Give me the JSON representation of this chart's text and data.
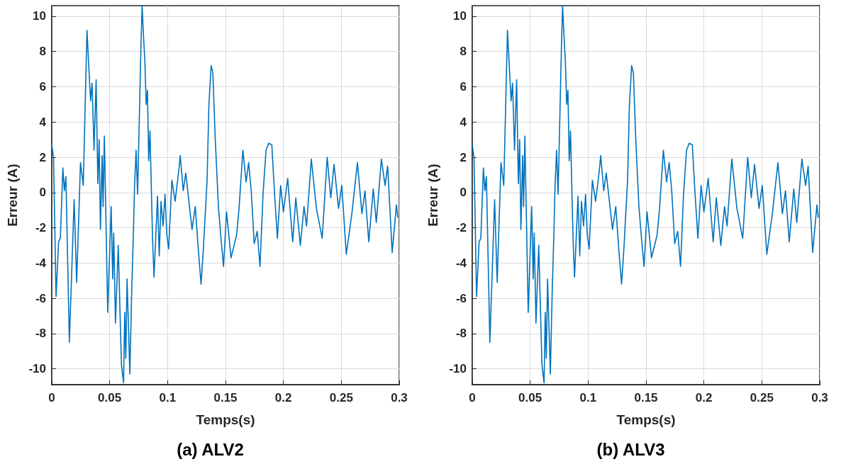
{
  "chart_data": [
    {
      "type": "line",
      "title": "(a) ALV2",
      "xlabel": "Temps(s)",
      "ylabel": "Erreur (A)",
      "xlim": [
        0,
        0.3
      ],
      "xticks": [
        0,
        0.05,
        0.1,
        0.15,
        0.2,
        0.25,
        0.3
      ],
      "ylim": [
        -10.9,
        10.6
      ],
      "yticks": [
        -10,
        -8,
        -6,
        -4,
        -2,
        0,
        2,
        4,
        6,
        8,
        10
      ],
      "grid": true,
      "marker": "none",
      "line_style": "solid",
      "series": [
        {
          "color": "#0072bd",
          "x": [
            0,
            0.0015,
            0.0037,
            0.0059,
            0.0074,
            0.0096,
            0.0109,
            0.0122,
            0.0152,
            0.0193,
            0.0215,
            0.0248,
            0.0272,
            0.0304,
            0.0335,
            0.0348,
            0.0365,
            0.0383,
            0.0398,
            0.0409,
            0.042,
            0.0435,
            0.0443,
            0.0454,
            0.0483,
            0.0513,
            0.0526,
            0.0535,
            0.055,
            0.0574,
            0.0593,
            0.0602,
            0.062,
            0.063,
            0.0639,
            0.065,
            0.0674,
            0.0691,
            0.0704,
            0.0715,
            0.0728,
            0.0741,
            0.0757,
            0.077,
            0.078,
            0.0791,
            0.0804,
            0.0815,
            0.0826,
            0.0837,
            0.0848,
            0.087,
            0.0883,
            0.0898,
            0.0913,
            0.0928,
            0.0943,
            0.0961,
            0.0978,
            0.0993,
            0.1009,
            0.1037,
            0.1065,
            0.1096,
            0.1109,
            0.1135,
            0.1157,
            0.1189,
            0.1211,
            0.1239,
            0.1265,
            0.1289,
            0.1309,
            0.1341,
            0.1357,
            0.1376,
            0.1391,
            0.1411,
            0.1439,
            0.1461,
            0.1483,
            0.1509,
            0.1548,
            0.1596,
            0.1617,
            0.165,
            0.1678,
            0.17,
            0.1722,
            0.1748,
            0.1774,
            0.1798,
            0.1824,
            0.185,
            0.1874,
            0.19,
            0.1922,
            0.1948,
            0.1976,
            0.2,
            0.2037,
            0.208,
            0.2107,
            0.2146,
            0.2178,
            0.22,
            0.2241,
            0.2285,
            0.2335,
            0.2378,
            0.2409,
            0.2437,
            0.2476,
            0.2504,
            0.2543,
            0.2591,
            0.2639,
            0.2678,
            0.2704,
            0.2737,
            0.2776,
            0.2802,
            0.2846,
            0.2878,
            0.29,
            0.2939,
            0.2976,
            0.2987
          ],
          "values": [
            2.7,
            2.0,
            -5.9,
            -2.8,
            -2.6,
            1.4,
            0.1,
            0.9,
            -8.5,
            -0.4,
            -5.1,
            1.7,
            0.4,
            9.2,
            5.2,
            6.2,
            2.4,
            6.4,
            0.5,
            3.0,
            -2.1,
            2.1,
            -0.8,
            3.2,
            -6.8,
            -0.8,
            -4.9,
            -2.3,
            -7.4,
            -3.0,
            -7.7,
            -9.8,
            -10.8,
            -6.8,
            -9.4,
            -4.9,
            -10.3,
            -5.4,
            -2.5,
            0.4,
            2.4,
            -0.1,
            4.5,
            8.3,
            10.6,
            9.0,
            7.4,
            5.0,
            5.8,
            1.8,
            3.5,
            -2.6,
            -4.8,
            -2.5,
            -0.2,
            -3.6,
            -0.5,
            -1.9,
            -0.1,
            -2.4,
            -3.2,
            0.7,
            -0.5,
            1.2,
            2.1,
            0.1,
            1.1,
            -0.8,
            -2.1,
            -0.8,
            -3.2,
            -5.2,
            -3.2,
            0.7,
            5.0,
            7.2,
            6.8,
            3.1,
            -0.8,
            -2.6,
            -4.2,
            -1.1,
            -3.7,
            -2.4,
            -0.9,
            2.4,
            0.6,
            1.7,
            0.1,
            -2.9,
            -2.2,
            -4.2,
            -0.1,
            2.4,
            2.8,
            2.7,
            0.1,
            -2.6,
            0.4,
            -1.1,
            0.8,
            -2.8,
            -0.3,
            -3.0,
            -0.8,
            -1.9,
            1.9,
            -0.9,
            -2.6,
            2.0,
            -0.3,
            1.6,
            -0.9,
            0.4,
            -3.5,
            -1.2,
            1.7,
            -1.2,
            0.1,
            -2.8,
            0.2,
            -1.7,
            1.9,
            0.4,
            1.5,
            -3.4,
            -0.7,
            -1.4
          ]
        }
      ]
    },
    {
      "type": "line",
      "title": "(b) ALV3",
      "xlabel": "Temps(s)",
      "ylabel": "Erreur (A)",
      "xlim": [
        0,
        0.3
      ],
      "xticks": [
        0,
        0.05,
        0.1,
        0.15,
        0.2,
        0.25,
        0.3
      ],
      "ylim": [
        -10.9,
        10.6
      ],
      "yticks": [
        -10,
        -8,
        -6,
        -4,
        -2,
        0,
        2,
        4,
        6,
        8,
        10
      ],
      "grid": true,
      "marker": "none",
      "line_style": "solid",
      "series": [
        {
          "color": "#0072bd",
          "x": [
            0,
            0.0015,
            0.0037,
            0.0059,
            0.0074,
            0.0096,
            0.0109,
            0.0122,
            0.0152,
            0.0193,
            0.0215,
            0.0248,
            0.0272,
            0.0304,
            0.0335,
            0.0348,
            0.0365,
            0.0383,
            0.0398,
            0.0409,
            0.042,
            0.0435,
            0.0443,
            0.0454,
            0.0483,
            0.0513,
            0.0526,
            0.0535,
            0.055,
            0.0574,
            0.0593,
            0.0602,
            0.062,
            0.063,
            0.0639,
            0.065,
            0.0674,
            0.0691,
            0.0704,
            0.0715,
            0.0728,
            0.0741,
            0.0757,
            0.077,
            0.078,
            0.0791,
            0.0804,
            0.0815,
            0.0826,
            0.0837,
            0.0848,
            0.087,
            0.0883,
            0.0898,
            0.0913,
            0.0928,
            0.0943,
            0.0961,
            0.0978,
            0.0993,
            0.1009,
            0.1037,
            0.1065,
            0.1096,
            0.1109,
            0.1135,
            0.1157,
            0.1189,
            0.1211,
            0.1239,
            0.1265,
            0.1289,
            0.1309,
            0.1341,
            0.1357,
            0.1376,
            0.1391,
            0.1411,
            0.1439,
            0.1461,
            0.1483,
            0.1509,
            0.1548,
            0.1596,
            0.1617,
            0.165,
            0.1678,
            0.17,
            0.1722,
            0.1748,
            0.1774,
            0.1798,
            0.1824,
            0.185,
            0.1874,
            0.19,
            0.1922,
            0.1948,
            0.1976,
            0.2,
            0.2037,
            0.208,
            0.2107,
            0.2146,
            0.2178,
            0.22,
            0.2241,
            0.2285,
            0.2335,
            0.2378,
            0.2409,
            0.2437,
            0.2476,
            0.2504,
            0.2543,
            0.2591,
            0.2639,
            0.2678,
            0.2704,
            0.2737,
            0.2776,
            0.2802,
            0.2846,
            0.2878,
            0.29,
            0.2939,
            0.2976,
            0.2987
          ],
          "values": [
            2.7,
            2.0,
            -5.9,
            -2.8,
            -2.6,
            1.4,
            0.1,
            0.9,
            -8.5,
            -0.4,
            -5.1,
            1.7,
            0.4,
            9.2,
            5.2,
            6.2,
            2.4,
            6.4,
            0.5,
            3.0,
            -2.1,
            2.1,
            -0.8,
            3.2,
            -6.8,
            -0.8,
            -4.9,
            -2.3,
            -7.4,
            -3.0,
            -7.7,
            -9.8,
            -10.8,
            -6.8,
            -9.4,
            -4.9,
            -10.3,
            -5.4,
            -2.5,
            0.4,
            2.4,
            -0.1,
            4.5,
            8.3,
            10.6,
            9.0,
            7.4,
            5.0,
            5.8,
            1.8,
            3.5,
            -2.6,
            -4.8,
            -2.5,
            -0.2,
            -3.6,
            -0.5,
            -1.9,
            -0.1,
            -2.4,
            -3.2,
            0.7,
            -0.5,
            1.2,
            2.1,
            0.1,
            1.1,
            -0.8,
            -2.1,
            -0.8,
            -3.2,
            -5.2,
            -3.2,
            0.7,
            5.0,
            7.2,
            6.8,
            3.1,
            -0.8,
            -2.6,
            -4.2,
            -1.1,
            -3.7,
            -2.4,
            -0.9,
            2.4,
            0.6,
            1.7,
            0.1,
            -2.9,
            -2.2,
            -4.2,
            -0.1,
            2.4,
            2.8,
            2.7,
            0.1,
            -2.6,
            0.4,
            -1.1,
            0.8,
            -2.8,
            -0.3,
            -3.0,
            -0.8,
            -1.9,
            1.9,
            -0.9,
            -2.6,
            2.0,
            -0.3,
            1.6,
            -0.9,
            0.4,
            -3.5,
            -1.2,
            1.7,
            -1.2,
            0.1,
            -2.8,
            0.2,
            -1.7,
            1.9,
            0.4,
            1.5,
            -3.4,
            -0.7,
            -1.4
          ]
        }
      ]
    }
  ]
}
